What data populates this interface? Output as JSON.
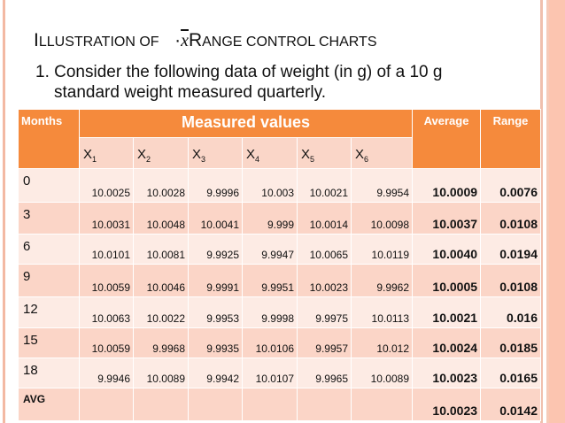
{
  "title": {
    "prefix_first": "I",
    "prefix_rest": "LLUSTRATION OF",
    "symbol": "x",
    "suffix_first": "R",
    "suffix_rest": "ANGE CONTROL CHARTS"
  },
  "intro": {
    "line1": "1. Consider the following data of weight (in g) of a 10 g",
    "line2": "standard weight measured quarterly."
  },
  "table": {
    "headers": {
      "months": "Months",
      "measured": "Measured values",
      "average": "Average",
      "range": "Range"
    },
    "sub_headers": [
      {
        "base": "X",
        "sub": "1"
      },
      {
        "base": "X",
        "sub": "2"
      },
      {
        "base": "X",
        "sub": "3"
      },
      {
        "base": "X",
        "sub": "4"
      },
      {
        "base": "X",
        "sub": "5"
      },
      {
        "base": "X",
        "sub": "6"
      }
    ],
    "rows": [
      {
        "month": "0",
        "values": [
          "10.0025",
          "10.0028",
          "9.9996",
          "10.003",
          "10.0021",
          "9.9954"
        ],
        "average": "10.0009",
        "range": "0.0076"
      },
      {
        "month": "3",
        "values": [
          "10.0031",
          "10.0048",
          "10.0041",
          "9.999",
          "10.0014",
          "10.0098"
        ],
        "average": "10.0037",
        "range": "0.0108"
      },
      {
        "month": "6",
        "values": [
          "10.0101",
          "10.0081",
          "9.9925",
          "9.9947",
          "10.0065",
          "10.0119"
        ],
        "average": "10.0040",
        "range": "0.0194"
      },
      {
        "month": "9",
        "values": [
          "10.0059",
          "10.0046",
          "9.9991",
          "9.9951",
          "10.0023",
          "9.9962"
        ],
        "average": "10.0005",
        "range": "0.0108"
      },
      {
        "month": "12",
        "values": [
          "10.0063",
          "10.0022",
          "9.9953",
          "9.9998",
          "9.9975",
          "10.0113"
        ],
        "average": "10.0021",
        "range": "0.016"
      },
      {
        "month": "15",
        "values": [
          "10.0059",
          "9.9968",
          "9.9935",
          "10.0106",
          "9.9957",
          "10.012"
        ],
        "average": "10.0024",
        "range": "0.0185"
      },
      {
        "month": "18",
        "values": [
          "9.9946",
          "10.0089",
          "9.9942",
          "10.0107",
          "9.9965",
          "10.0089"
        ],
        "average": "10.0023",
        "range": "0.0165"
      }
    ],
    "avg_row": {
      "label": "AVG",
      "average": "10.0023",
      "range": "0.0142"
    }
  },
  "colors": {
    "header": "#f58a3c",
    "row_light": "#fdebe4",
    "row_dark": "#fbd5c7",
    "border_accent": "#fcc5b0"
  }
}
